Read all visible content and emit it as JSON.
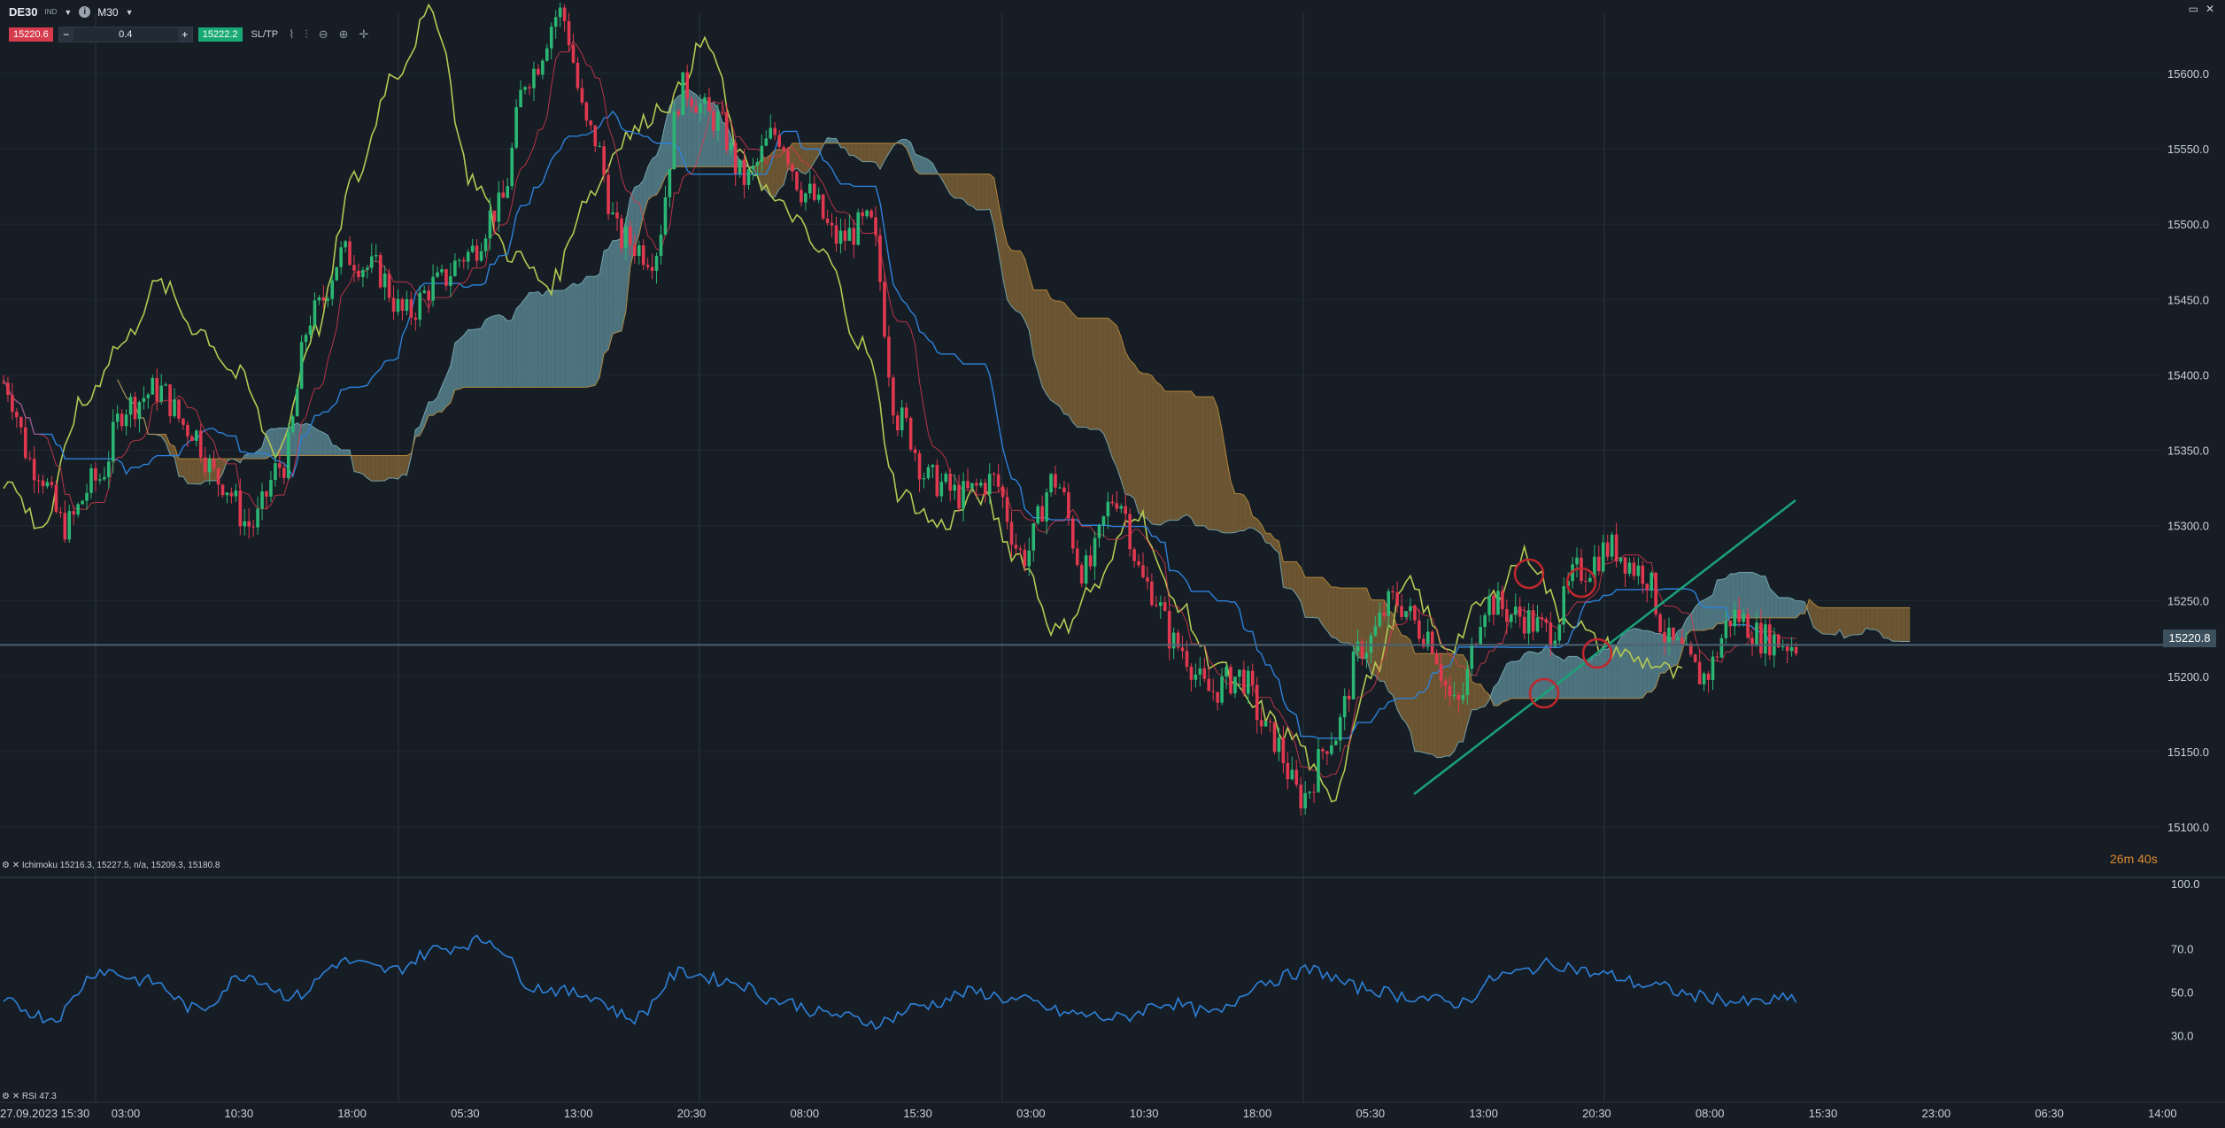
{
  "header": {
    "symbol": "DE30",
    "symbol_sub": "IND",
    "timeframe": "M30",
    "sell_price": "15220.6",
    "quantity": "0.4",
    "buy_price": "15222.2",
    "sltp_label": "SL/TP",
    "minus_label": "−",
    "plus_label": "+",
    "info_label": "i"
  },
  "window_controls": {
    "restore": "▭",
    "close": "✕"
  },
  "indicators": {
    "ichimoku_legend": "Ichimoku 15216.3, 15227.5, n/a, 15209.3, 15180.8",
    "rsi_legend": "RSI 47.3"
  },
  "countdown": "26m 40s",
  "current_price": "15220.8",
  "colors": {
    "background": "#161d25",
    "bull": "#2bb673",
    "bear": "#e0394f",
    "tenkan": "#e0394f",
    "kijun": "#2e80d8",
    "chikou": "#b5c952",
    "kumo_bull": "#6fa8b4",
    "kumo_bear": "#a0773a",
    "rsi": "#2e80d8",
    "trendline": "#1aa27a",
    "markers": "#c0262d"
  },
  "chart_data": [
    {
      "type": "candlestick",
      "title": "DE30 M30 — Ichimoku",
      "ylim": [
        15070,
        15640
      ],
      "y_ticks": [
        15100.0,
        15150.0,
        15200.0,
        15250.0,
        15300.0,
        15350.0,
        15400.0,
        15450.0,
        15500.0,
        15550.0,
        15600.0
      ],
      "y_tick_labels": [
        "15100.0",
        "15150.0",
        "15200.0",
        "15250.0",
        "15300.0",
        "15350.0",
        "15400.0",
        "15450.0",
        "15500.0",
        "15550.0",
        "15600.0"
      ],
      "x_tick_labels": [
        "27.09.2023 15:30",
        "03:00",
        "10:30",
        "18:00",
        "05:30",
        "13:00",
        "20:30",
        "08:00",
        "15:30",
        "03:00",
        "10:30",
        "18:00",
        "05:30",
        "13:00",
        "20:30",
        "08:00",
        "15:30",
        "23:00",
        "06:30",
        "14:00"
      ],
      "close_anchors": [
        15395,
        15340,
        15300,
        15330,
        15380,
        15390,
        15365,
        15330,
        15300,
        15340,
        15440,
        15480,
        15470,
        15440,
        15460,
        15480,
        15510,
        15600,
        15640,
        15560,
        15490,
        15480,
        15590,
        15570,
        15530,
        15560,
        15520,
        15490,
        15500,
        15370,
        15330,
        15320,
        15330,
        15280,
        15330,
        15270,
        15320,
        15260,
        15220,
        15190,
        15200,
        15160,
        15120,
        15160,
        15220,
        15250,
        15230,
        15180,
        15250,
        15240,
        15230,
        15270,
        15285,
        15270,
        15220,
        15200,
        15240,
        15225,
        15221
      ],
      "chikou_anchors": [
        15330,
        15300,
        15380,
        15420,
        15460,
        15430,
        15400,
        15350,
        15430,
        15530,
        15600,
        15640,
        15530,
        15480,
        15460,
        15520,
        15560,
        15580,
        15620,
        15540,
        15510,
        15480,
        15420,
        15320,
        15300,
        15320,
        15280,
        15230,
        15260,
        15310,
        15250,
        15210,
        15180,
        15160,
        15120,
        15200,
        15260,
        15220,
        15250,
        15280,
        15240,
        15220,
        15210,
        15200
      ],
      "kumo_dates_extend_to_x_label": "23:00",
      "rsi": {
        "ylim": [
          0,
          100
        ],
        "y_ticks": [
          30.0,
          50.0,
          70.0,
          100.0
        ],
        "y_tick_labels": [
          "30.0",
          "50.0",
          "70.0",
          "100.0"
        ],
        "anchors": [
          45,
          38,
          60,
          55,
          42,
          58,
          48,
          64,
          60,
          70,
          74,
          52,
          49,
          38,
          59,
          55,
          46,
          40,
          36,
          44,
          50,
          46,
          40,
          38,
          45,
          40,
          55,
          60,
          52,
          48,
          45,
          58,
          63,
          58,
          53,
          48,
          45,
          47
        ]
      }
    }
  ]
}
